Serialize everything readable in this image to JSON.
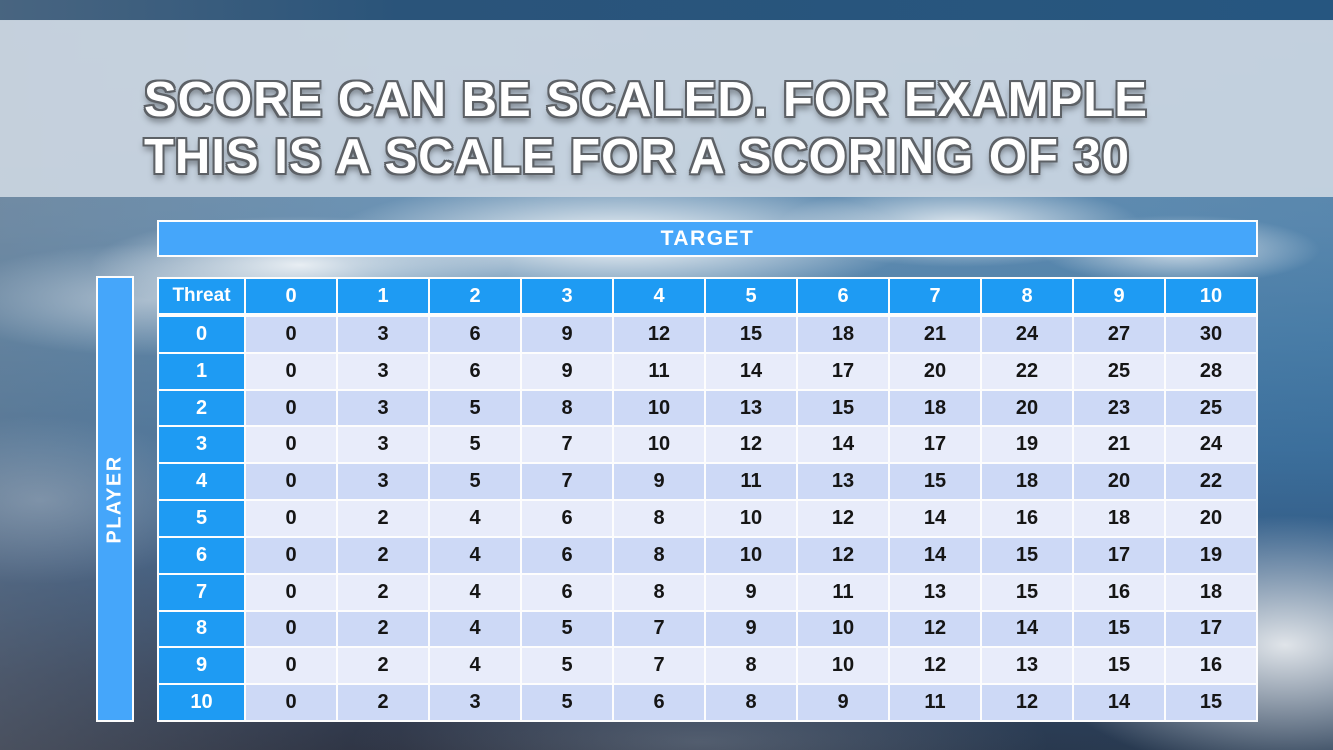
{
  "title": {
    "line1": "SCORE CAN BE SCALED. FOR EXAMPLE",
    "line2": "THIS IS A SCALE FOR A SCORING OF 30"
  },
  "chart_data": {
    "type": "table",
    "title": "Scale for a scoring of 30",
    "col_axis_label": "TARGET",
    "row_axis_label": "PLAYER",
    "corner_label": "Threat",
    "columns": [
      "0",
      "1",
      "2",
      "3",
      "4",
      "5",
      "6",
      "7",
      "8",
      "9",
      "10"
    ],
    "row_headers": [
      "0",
      "1",
      "2",
      "3",
      "4",
      "5",
      "6",
      "7",
      "8",
      "9",
      "10"
    ],
    "matrix": [
      [
        0,
        3,
        6,
        9,
        12,
        15,
        18,
        21,
        24,
        27,
        30
      ],
      [
        0,
        3,
        6,
        9,
        11,
        14,
        17,
        20,
        22,
        25,
        28
      ],
      [
        0,
        3,
        5,
        8,
        10,
        13,
        15,
        18,
        20,
        23,
        25
      ],
      [
        0,
        3,
        5,
        7,
        10,
        12,
        14,
        17,
        19,
        21,
        24
      ],
      [
        0,
        3,
        5,
        7,
        9,
        11,
        13,
        15,
        18,
        20,
        22
      ],
      [
        0,
        2,
        4,
        6,
        8,
        10,
        12,
        14,
        16,
        18,
        20
      ],
      [
        0,
        2,
        4,
        6,
        8,
        10,
        12,
        14,
        15,
        17,
        19
      ],
      [
        0,
        2,
        4,
        6,
        8,
        9,
        11,
        13,
        15,
        16,
        18
      ],
      [
        0,
        2,
        4,
        5,
        7,
        9,
        10,
        12,
        14,
        15,
        17
      ],
      [
        0,
        2,
        4,
        5,
        7,
        8,
        10,
        12,
        13,
        15,
        16
      ],
      [
        0,
        2,
        3,
        5,
        6,
        8,
        9,
        11,
        12,
        14,
        15
      ]
    ]
  },
  "colors": {
    "header_blue": "#1e9bf3",
    "band_blue": "#45a6fa",
    "row_shade_dark": "#cdd9f6",
    "row_shade_light": "#e8ecfa",
    "cell_text": "#151515",
    "title_band": "#d1dae5"
  }
}
